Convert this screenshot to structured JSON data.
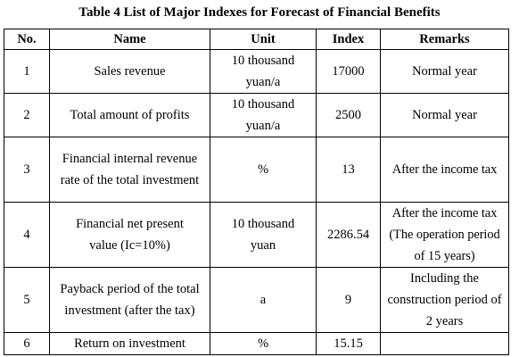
{
  "caption": "Table 4 List of Major Indexes for Forecast of Financial Benefits",
  "headers": [
    "No.",
    "Name",
    "Unit",
    "Index",
    "Remarks"
  ],
  "rows": [
    {
      "no": "1",
      "name": "Sales revenue",
      "unit": "10 thousand yuan/a",
      "index": "17000",
      "remarks": "Normal year"
    },
    {
      "no": "2",
      "name": "Total amount of profits",
      "unit": "10 thousand yuan/a",
      "index": "2500",
      "remarks": "Normal year"
    },
    {
      "no": "3",
      "name": "Financial internal revenue rate of the total investment",
      "unit": "%",
      "index": "13",
      "remarks": "After the income tax"
    },
    {
      "no": "4",
      "name": "Financial net present value (Ic=10%)",
      "unit": "10 thousand yuan",
      "index": "2286.54",
      "remarks": "After the income tax (The operation period of 15 years)"
    },
    {
      "no": "5",
      "name": "Payback period of the total investment (after the tax)",
      "unit": "a",
      "index": "9",
      "remarks": "Including the construction period of 2 years"
    },
    {
      "no": "6",
      "name": "Return on investment",
      "unit": "%",
      "index": "15.15",
      "remarks": ""
    }
  ]
}
